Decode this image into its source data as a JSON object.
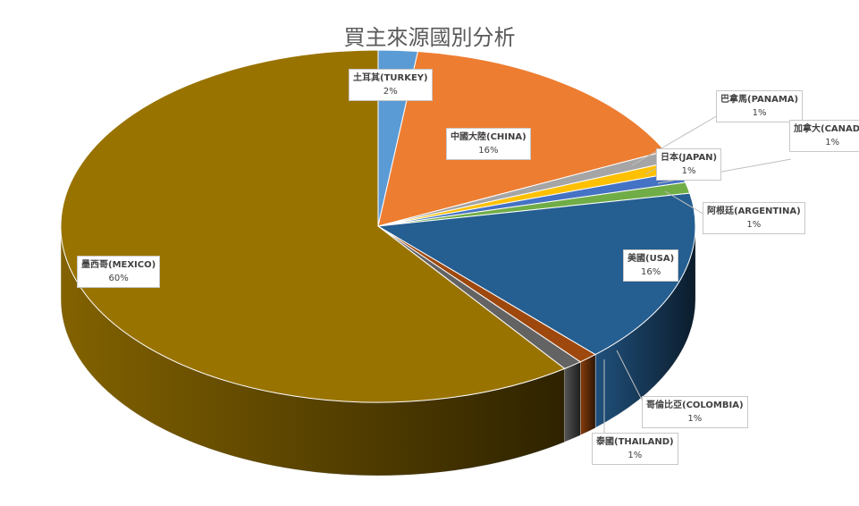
{
  "chart_data": {
    "type": "pie",
    "title": "買主來源國別分析",
    "slices": [
      {
        "label": "土耳其(TURKEY)",
        "value": 2,
        "display": "2%",
        "color": "#5b9bd5"
      },
      {
        "label": "中國大陸(CHINA)",
        "value": 16,
        "display": "16%",
        "color": "#ed7d31"
      },
      {
        "label": "巴拿馬(PANAMA)",
        "value": 1,
        "display": "1%",
        "color": "#a5a5a5"
      },
      {
        "label": "日本(JAPAN)",
        "value": 1,
        "display": "1%",
        "color": "#ffc000"
      },
      {
        "label": "加拿大(CANADA)",
        "value": 1,
        "display": "1%",
        "color": "#4472c4"
      },
      {
        "label": "阿根廷(ARGENTINA)",
        "value": 1,
        "display": "1%",
        "color": "#70ad47"
      },
      {
        "label": "美國(USA)",
        "value": 16,
        "display": "16%",
        "color": "#255e91"
      },
      {
        "label": "哥倫比亞(COLOMBIA)",
        "value": 1,
        "display": "1%",
        "color": "#9e480e"
      },
      {
        "label": "泰國(THAILAND)",
        "value": 1,
        "display": "1%",
        "color": "#636363"
      },
      {
        "label": "墨西哥(MEXICO)",
        "value": 60,
        "display": "60%",
        "color": "#997300"
      }
    ]
  }
}
